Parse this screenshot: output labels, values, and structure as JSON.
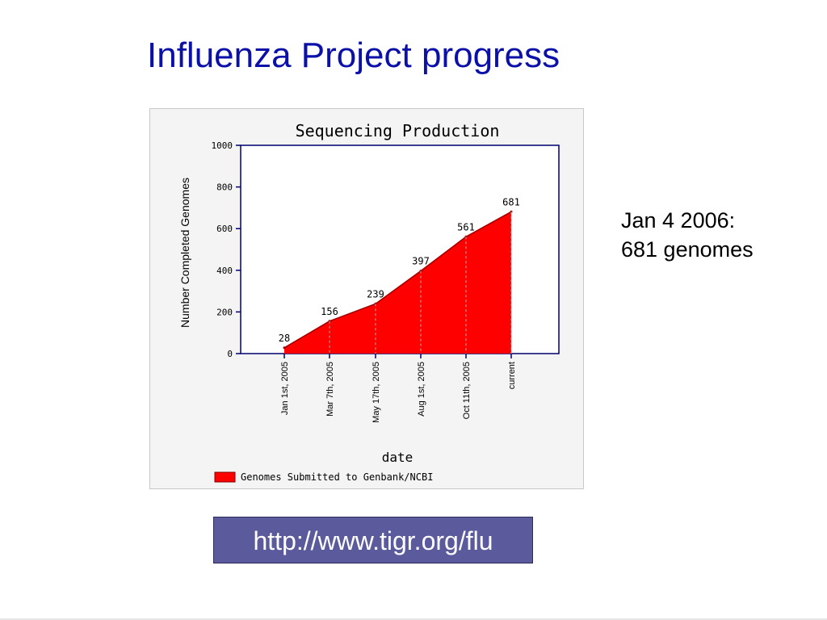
{
  "slide": {
    "title": "Influenza Project progress",
    "note_line1": "Jan 4 2006:",
    "note_line2": "681 genomes",
    "url": "http://www.tigr.org/flu"
  },
  "chart_data": {
    "type": "area",
    "title": "Sequencing Production",
    "xlabel": "date",
    "ylabel": "Number Completed Genomes",
    "categories": [
      "Jan 1st, 2005",
      "Mar 7th, 2005",
      "May 17th, 2005",
      "Aug 1st, 2005",
      "Oct 11th, 2005",
      "current"
    ],
    "values": [
      28,
      156,
      239,
      397,
      561,
      681
    ],
    "ylim": [
      0,
      1000
    ],
    "yticks": [
      0,
      200,
      400,
      600,
      800,
      1000
    ],
    "grid": false,
    "legend_position": "bottom",
    "series": [
      {
        "name": "Genomes Submitted to Genbank/NCBI",
        "values": [
          28,
          156,
          239,
          397,
          561,
          681
        ]
      }
    ],
    "colors": {
      "fill": "#ff0000",
      "stroke": "#a00000",
      "axis": "#00006e",
      "text": "#000000"
    }
  }
}
